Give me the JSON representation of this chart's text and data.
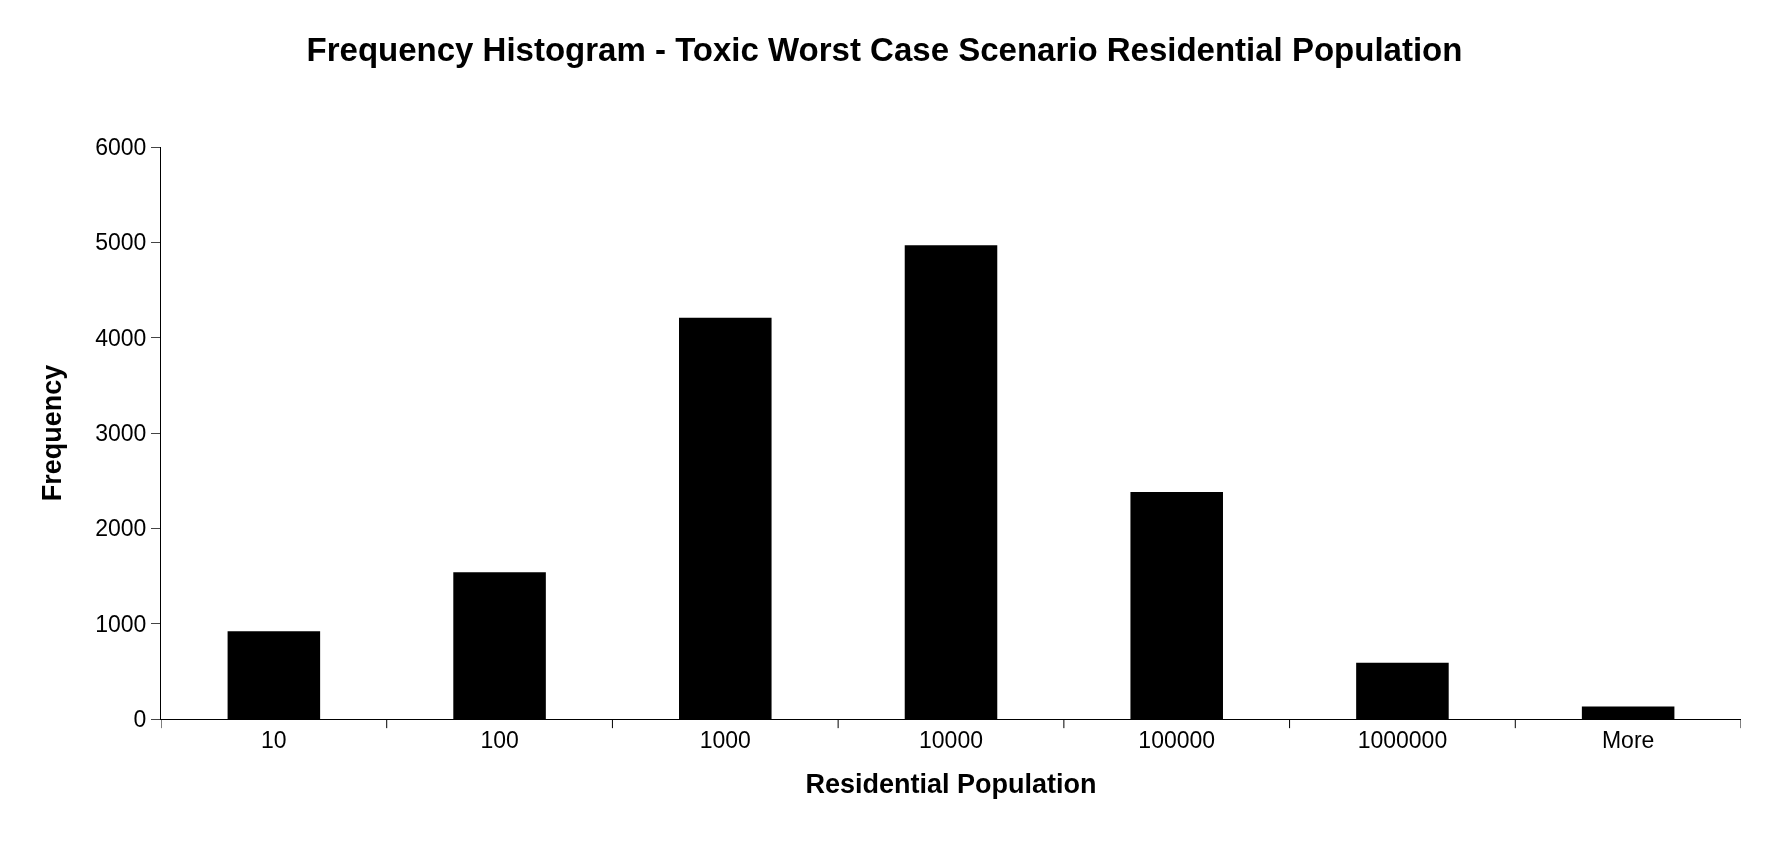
{
  "chart_data": {
    "type": "bar",
    "title": "Frequency Histogram - Toxic Worst Case Scenario Residential Population",
    "xlabel": "Residential Population",
    "ylabel": "Frequency",
    "categories": [
      "10",
      "100",
      "1000",
      "10000",
      "100000",
      "1000000",
      "More"
    ],
    "values": [
      920,
      1540,
      4210,
      4970,
      2380,
      590,
      130
    ],
    "color": "#000000",
    "ylim": [
      0,
      6000
    ],
    "yticks": [
      0,
      1000,
      2000,
      3000,
      4000,
      5000,
      6000
    ],
    "grid": false
  }
}
